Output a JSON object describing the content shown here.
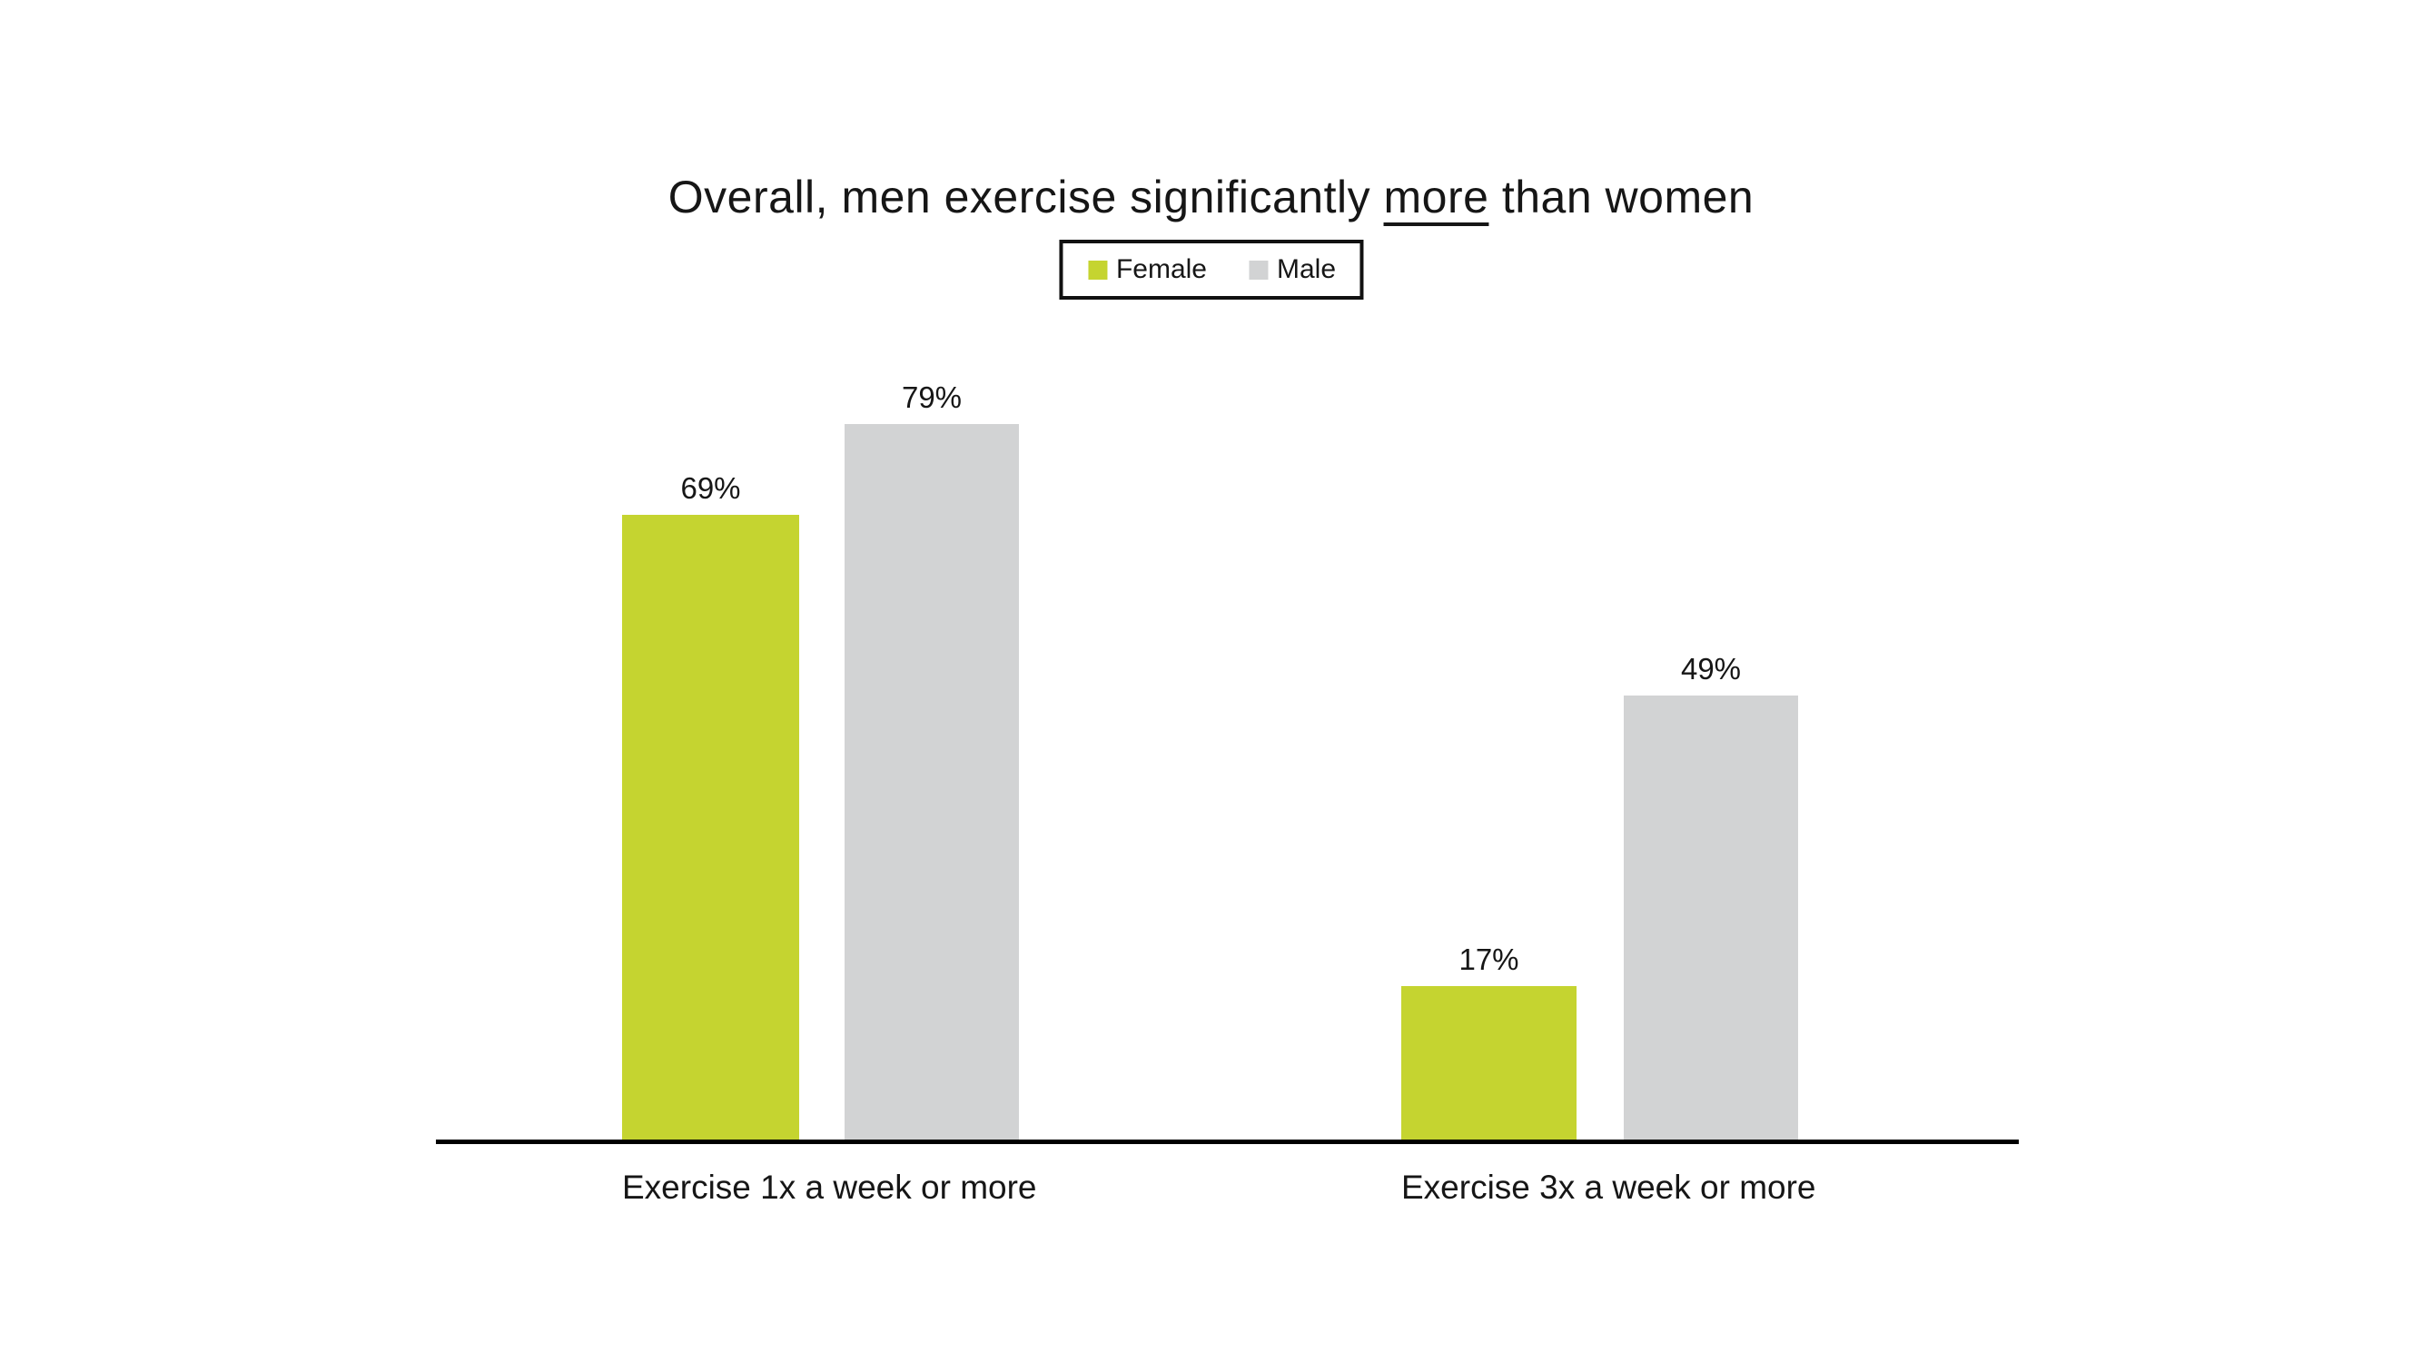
{
  "title": {
    "prefix": "Overall, men exercise significantly ",
    "underlined": "more",
    "suffix": " than women"
  },
  "chart_data": {
    "type": "bar",
    "title": "Overall, men exercise significantly more than women",
    "categories": [
      "Exercise 1x a week or more",
      "Exercise 3x a week or more"
    ],
    "series": [
      {
        "name": "Female",
        "color": "#c5d430",
        "values": [
          69,
          17
        ],
        "labels": [
          "69%",
          "17%"
        ]
      },
      {
        "name": "Male",
        "color": "#d2d3d4",
        "values": [
          79,
          49
        ],
        "labels": [
          "79%",
          "49%"
        ]
      }
    ],
    "value_suffix": "%",
    "ylim": [
      0,
      100
    ],
    "grid": false,
    "y_axis_visible": false,
    "legend_position": "top-center",
    "axis_color": "#000000",
    "text_color": "#161616",
    "background": "#ffffff"
  }
}
